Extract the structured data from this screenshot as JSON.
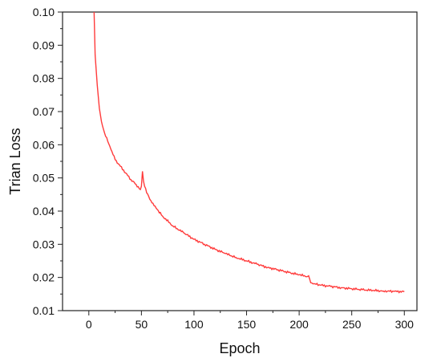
{
  "chart_data": {
    "type": "line",
    "title": "",
    "xlabel": "Epoch",
    "ylabel": "Trian Loss",
    "xlim": [
      -25,
      312
    ],
    "ylim": [
      0.01,
      0.1
    ],
    "x_ticks": [
      "0",
      "50",
      "100",
      "150",
      "200",
      "250",
      "300"
    ],
    "y_ticks": [
      "0.01",
      "0.02",
      "0.03",
      "0.04",
      "0.05",
      "0.06",
      "0.07",
      "0.08",
      "0.09",
      "0.10"
    ],
    "grid": false,
    "legend": "none",
    "series": [
      {
        "color": "#ff3b3b",
        "x": [
          5,
          6,
          8,
          10,
          12,
          15,
          18,
          20,
          25,
          30,
          35,
          40,
          45,
          49,
          50,
          51,
          52,
          55,
          60,
          65,
          70,
          80,
          90,
          100,
          110,
          120,
          130,
          140,
          150,
          160,
          170,
          180,
          190,
          200,
          208,
          209,
          210,
          211,
          215,
          220,
          230,
          240,
          250,
          260,
          270,
          280,
          290,
          300
        ],
        "y": [
          0.1,
          0.087,
          0.078,
          0.071,
          0.067,
          0.0635,
          0.061,
          0.0595,
          0.0555,
          0.0535,
          0.0515,
          0.0495,
          0.048,
          0.0465,
          0.0475,
          0.052,
          0.049,
          0.0455,
          0.0425,
          0.0405,
          0.0385,
          0.0355,
          0.0335,
          0.0315,
          0.03,
          0.0285,
          0.0272,
          0.026,
          0.025,
          0.024,
          0.023,
          0.0223,
          0.0215,
          0.0208,
          0.0203,
          0.0205,
          0.0195,
          0.0184,
          0.0181,
          0.0177,
          0.0173,
          0.0169,
          0.0166,
          0.0163,
          0.0161,
          0.0159,
          0.0158,
          0.0157
        ]
      }
    ]
  }
}
